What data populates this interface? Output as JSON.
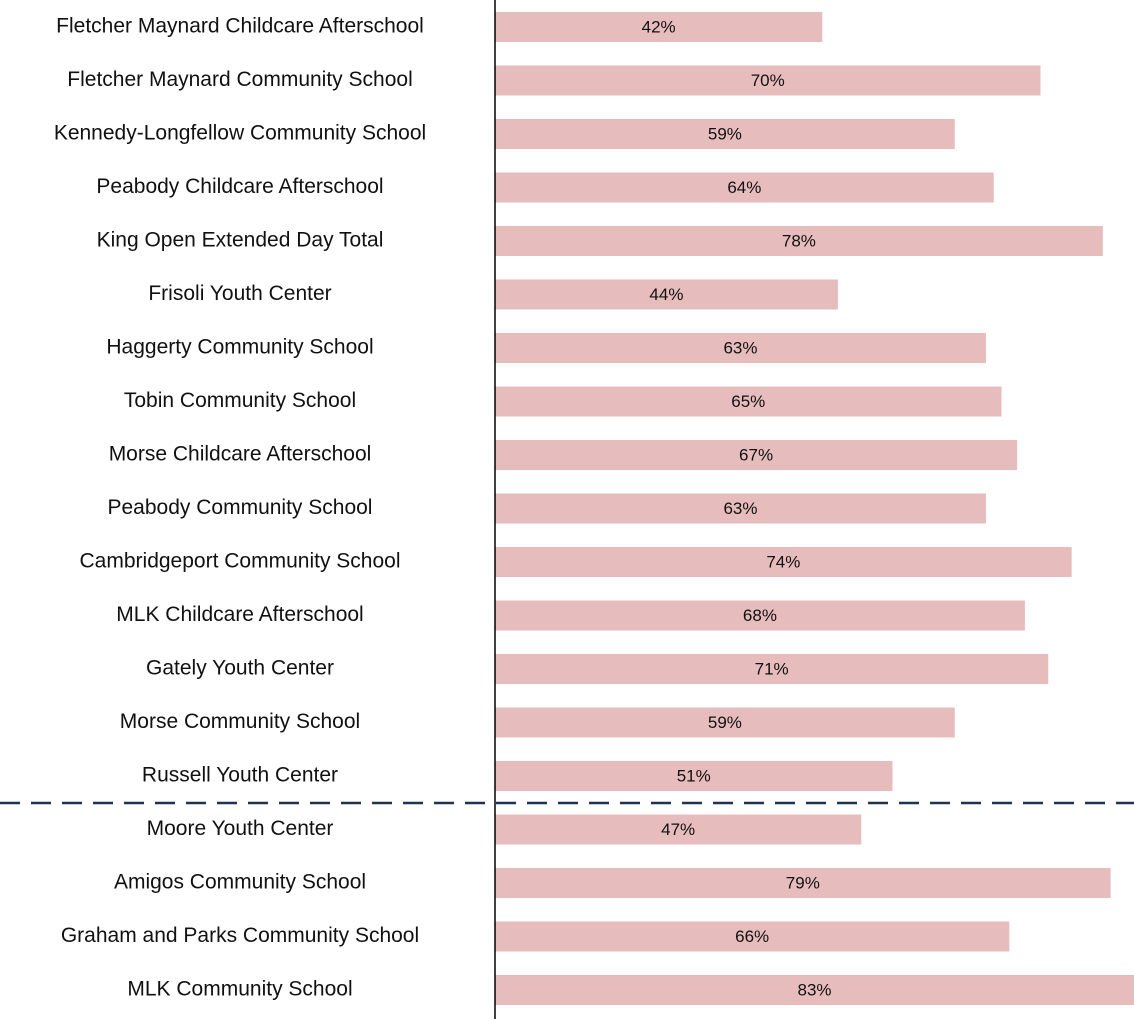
{
  "chart_data": {
    "type": "bar",
    "orientation": "horizontal",
    "categories": [
      "Fletcher Maynard Childcare Afterschool",
      "Fletcher Maynard Community School",
      "Kennedy-Longfellow Community School",
      "Peabody Childcare Afterschool",
      "King Open Extended Day Total",
      "Frisoli Youth Center",
      "Haggerty Community School",
      "Tobin Community School",
      "Morse Childcare Afterschool",
      "Peabody Community School",
      "Cambridgeport Community School",
      "MLK Childcare Afterschool",
      "Gately Youth Center",
      "Morse Community School",
      "Russell Youth Center",
      "Moore Youth Center",
      "Amigos Community School",
      "Graham and Parks Community School",
      "MLK Community School"
    ],
    "values": [
      42,
      70,
      59,
      64,
      78,
      44,
      63,
      65,
      67,
      63,
      74,
      68,
      71,
      59,
      51,
      47,
      79,
      66,
      83
    ],
    "value_labels": [
      "42%",
      "70%",
      "59%",
      "64%",
      "78%",
      "44%",
      "63%",
      "65%",
      "67%",
      "63%",
      "74%",
      "68%",
      "71%",
      "59%",
      "51%",
      "47%",
      "79%",
      "66%",
      "83%"
    ],
    "color": "#e6bcbc",
    "xlim": [
      0,
      82
    ]
  }
}
